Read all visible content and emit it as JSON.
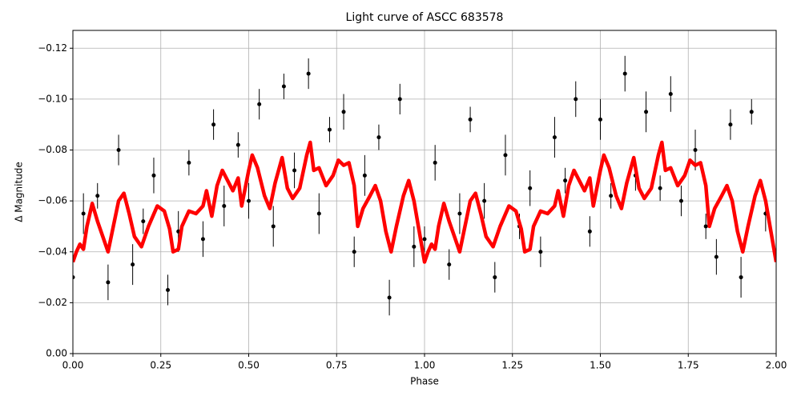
{
  "chart_data": {
    "type": "scatter",
    "title": "Light curve of ASCC 683578",
    "xlabel": "Phase",
    "ylabel": "Δ Magnitude",
    "xlim": [
      0,
      2
    ],
    "ylim": [
      0,
      -0.127
    ],
    "xticks": [
      {
        "value": 0,
        "label": "0.00"
      },
      {
        "value": 0.25,
        "label": "0.25"
      },
      {
        "value": 0.5,
        "label": "0.50"
      },
      {
        "value": 0.75,
        "label": "0.75"
      },
      {
        "value": 1,
        "label": "1.00"
      },
      {
        "value": 1.25,
        "label": "1.25"
      },
      {
        "value": 1.5,
        "label": "1.50"
      },
      {
        "value": 1.75,
        "label": "1.75"
      },
      {
        "value": 2,
        "label": "2.00"
      }
    ],
    "yticks": [
      {
        "value": 0,
        "label": "0.00"
      },
      {
        "value": -0.02,
        "label": "−0.02"
      },
      {
        "value": -0.04,
        "label": "−0.04"
      },
      {
        "value": -0.06,
        "label": "−0.06"
      },
      {
        "value": -0.08,
        "label": "−0.08"
      },
      {
        "value": -0.1,
        "label": "−0.10"
      },
      {
        "value": -0.12,
        "label": "−0.12"
      }
    ],
    "grid": true,
    "series": [
      {
        "type": "errorbar",
        "color": "#000000",
        "x": [
          0,
          0.03,
          0.07,
          0.1,
          0.13,
          0.17,
          0.2,
          0.23,
          0.27,
          0.3,
          0.33,
          0.37,
          0.4,
          0.43,
          0.47,
          0.5,
          0.53,
          0.57,
          0.6,
          0.63,
          0.67,
          0.7,
          0.73,
          0.77,
          0.8,
          0.83,
          0.87,
          0.9,
          0.93,
          0.97,
          1,
          1.03,
          1.07,
          1.1,
          1.13,
          1.17,
          1.2,
          1.23,
          1.27,
          1.3,
          1.33,
          1.37,
          1.4,
          1.43,
          1.47,
          1.5,
          1.53,
          1.57,
          1.6,
          1.63,
          1.67,
          1.7,
          1.73,
          1.77,
          1.8,
          1.83,
          1.87,
          1.9,
          1.93,
          1.97
        ],
        "values": [
          -0.03,
          -0.055,
          -0.062,
          -0.028,
          -0.08,
          -0.035,
          -0.052,
          -0.07,
          -0.025,
          -0.048,
          -0.075,
          -0.045,
          -0.09,
          -0.058,
          -0.082,
          -0.06,
          -0.098,
          -0.05,
          -0.105,
          -0.072,
          -0.11,
          -0.055,
          -0.088,
          -0.095,
          -0.04,
          -0.07,
          -0.085,
          -0.022,
          -0.1,
          -0.042,
          -0.045,
          -0.075,
          -0.035,
          -0.055,
          -0.092,
          -0.06,
          -0.03,
          -0.078,
          -0.05,
          -0.065,
          -0.04,
          -0.085,
          -0.068,
          -0.1,
          -0.048,
          -0.092,
          -0.062,
          -0.11,
          -0.07,
          -0.095,
          -0.065,
          -0.102,
          -0.06,
          -0.08,
          -0.05,
          -0.038,
          -0.09,
          -0.03,
          -0.095,
          -0.055
        ],
        "yerr": [
          0.006,
          0.008,
          0.005,
          0.007,
          0.006,
          0.008,
          0.005,
          0.007,
          0.006,
          0.008,
          0.005,
          0.007,
          0.006,
          0.008,
          0.005,
          0.007,
          0.006,
          0.008,
          0.005,
          0.007,
          0.006,
          0.008,
          0.005,
          0.007,
          0.006,
          0.008,
          0.005,
          0.007,
          0.006,
          0.008,
          0.005,
          0.007,
          0.006,
          0.008,
          0.005,
          0.007,
          0.006,
          0.008,
          0.005,
          0.007,
          0.006,
          0.008,
          0.005,
          0.007,
          0.006,
          0.008,
          0.005,
          0.007,
          0.006,
          0.008,
          0.005,
          0.007,
          0.006,
          0.008,
          0.005,
          0.007,
          0.006,
          0.008,
          0.005,
          0.007
        ]
      },
      {
        "type": "line",
        "color": "#ff0000",
        "x": [
          0,
          0.01,
          0.02,
          0.03,
          0.04,
          0.055,
          0.07,
          0.085,
          0.1,
          0.115,
          0.13,
          0.145,
          0.16,
          0.175,
          0.195,
          0.215,
          0.24,
          0.26,
          0.275,
          0.285,
          0.3,
          0.31,
          0.33,
          0.35,
          0.37,
          0.38,
          0.395,
          0.41,
          0.425,
          0.44,
          0.455,
          0.47,
          0.48,
          0.5,
          0.51,
          0.525,
          0.545,
          0.56,
          0.575,
          0.595,
          0.61,
          0.625,
          0.645,
          0.665,
          0.675,
          0.685,
          0.7,
          0.72,
          0.74,
          0.755,
          0.77,
          0.785,
          0.8,
          0.81,
          0.825,
          0.845,
          0.86,
          0.875,
          0.89,
          0.905,
          0.92,
          0.94,
          0.955,
          0.97,
          0.985,
          1,
          1.01,
          1.02,
          1.03,
          1.04,
          1.055,
          1.07,
          1.085,
          1.1,
          1.115,
          1.13,
          1.145,
          1.16,
          1.175,
          1.195,
          1.215,
          1.24,
          1.26,
          1.275,
          1.285,
          1.3,
          1.31,
          1.33,
          1.35,
          1.37,
          1.38,
          1.395,
          1.41,
          1.425,
          1.44,
          1.455,
          1.47,
          1.48,
          1.5,
          1.51,
          1.525,
          1.545,
          1.56,
          1.575,
          1.595,
          1.61,
          1.625,
          1.645,
          1.665,
          1.675,
          1.685,
          1.7,
          1.72,
          1.74,
          1.755,
          1.77,
          1.785,
          1.8,
          1.81,
          1.825,
          1.845,
          1.86,
          1.875,
          1.89,
          1.905,
          1.92,
          1.94,
          1.955,
          1.97,
          1.985,
          2
        ],
        "values": [
          -0.036,
          -0.04,
          -0.043,
          -0.041,
          -0.05,
          -0.059,
          -0.052,
          -0.046,
          -0.04,
          -0.05,
          -0.06,
          -0.063,
          -0.055,
          -0.046,
          -0.042,
          -0.05,
          -0.058,
          -0.056,
          -0.049,
          -0.04,
          -0.041,
          -0.05,
          -0.056,
          -0.055,
          -0.058,
          -0.064,
          -0.054,
          -0.066,
          -0.072,
          -0.068,
          -0.064,
          -0.069,
          -0.058,
          -0.072,
          -0.078,
          -0.073,
          -0.062,
          -0.057,
          -0.067,
          -0.077,
          -0.065,
          -0.061,
          -0.065,
          -0.078,
          -0.083,
          -0.072,
          -0.073,
          -0.066,
          -0.07,
          -0.076,
          -0.074,
          -0.075,
          -0.066,
          -0.05,
          -0.057,
          -0.062,
          -0.066,
          -0.06,
          -0.048,
          -0.04,
          -0.05,
          -0.062,
          -0.068,
          -0.06,
          -0.048,
          -0.036,
          -0.04,
          -0.043,
          -0.041,
          -0.05,
          -0.059,
          -0.052,
          -0.046,
          -0.04,
          -0.05,
          -0.06,
          -0.063,
          -0.055,
          -0.046,
          -0.042,
          -0.05,
          -0.058,
          -0.056,
          -0.049,
          -0.04,
          -0.041,
          -0.05,
          -0.056,
          -0.055,
          -0.058,
          -0.064,
          -0.054,
          -0.066,
          -0.072,
          -0.068,
          -0.064,
          -0.069,
          -0.058,
          -0.072,
          -0.078,
          -0.073,
          -0.062,
          -0.057,
          -0.067,
          -0.077,
          -0.065,
          -0.061,
          -0.065,
          -0.078,
          -0.083,
          -0.072,
          -0.073,
          -0.066,
          -0.07,
          -0.076,
          -0.074,
          -0.075,
          -0.066,
          -0.05,
          -0.057,
          -0.062,
          -0.066,
          -0.06,
          -0.048,
          -0.04,
          -0.05,
          -0.062,
          -0.068,
          -0.06,
          -0.048,
          -0.036
        ]
      }
    ]
  }
}
